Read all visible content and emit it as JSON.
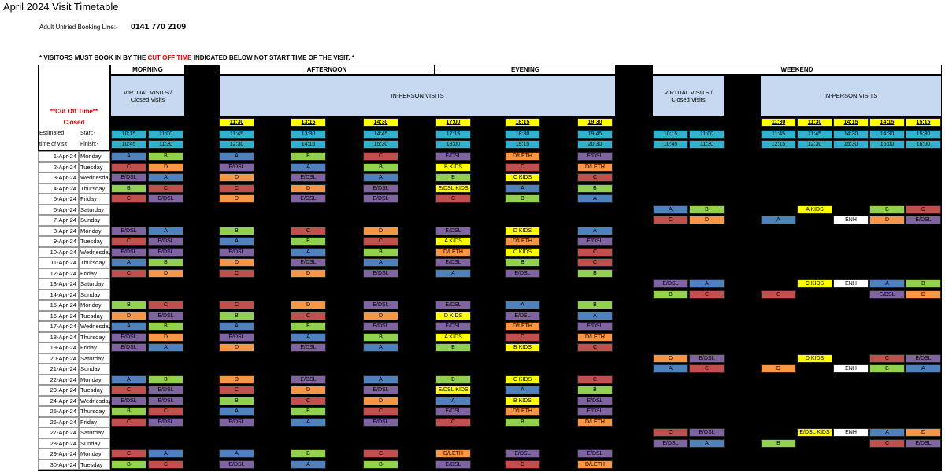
{
  "title": "April 2024 Visit Timetable",
  "booking": {
    "label": "Adult Untried Booking Line:-",
    "number": "0141 770 2109"
  },
  "notice": {
    "before": "* VISITORS MUST BOOK IN BY THE ",
    "highlight": "CUT OFF TIME",
    "after": " INDICATED BELOW NOT START TIME OF THE VISIT. *"
  },
  "sections": [
    "MORNING",
    "AFTERNOON",
    "EVENING",
    "WEEKEND"
  ],
  "groups": [
    "VIRTUAL VISITS / Closed Visits",
    "IN-PERSON VISITS",
    "VIRTUAL VISITS / Closed Visits",
    "IN-PERSON VISITS"
  ],
  "cut_off_label": "**Cut Off Time**",
  "closed_label": "Closed",
  "estimated_label": [
    "Estimated",
    "time of visit"
  ],
  "start_label": "Start:-",
  "finish_label": "Finish:-",
  "cut_off_times": [
    null,
    null,
    "11:30",
    "13:15",
    "14:30",
    "17:00",
    "18:15",
    "19:30",
    null,
    null,
    "11:30",
    "11:30",
    "14:15",
    "14:15",
    "15:15"
  ],
  "start_times": [
    "10:15",
    "11:00",
    "11:45",
    "13:30",
    "14:45",
    "17:15",
    "18:30",
    "19:45",
    "10:15",
    "11:00",
    "11:45",
    "11:45",
    "14:30",
    "14:30",
    "15:30"
  ],
  "finish_times": [
    "10:45",
    "11:30",
    "12:30",
    "14:15",
    "15:30",
    "18:00",
    "19:15",
    "20:30",
    "10:45",
    "11:30",
    "12:15",
    "12:30",
    "15:30",
    "15:00",
    "16:00"
  ],
  "cell_colors": {
    "A": "#4f81bd",
    "B": "#92d050",
    "C": "#c0504d",
    "D": "#f79646",
    "E/DSL": "#8064a2",
    "D/LETH": "#f79646",
    "ENH": "#ffffff",
    "A KIDS": "#ffff00",
    "B KIDS": "#ffff00",
    "C KIDS": "#ffff00",
    "D KIDS": "#ffff00",
    "E/DSL KIDS": "#ffff00"
  },
  "rows": [
    {
      "date": "1-Apr-24",
      "day": "Monday",
      "cells": [
        "A",
        "B",
        "A",
        "B",
        "C",
        "E/DSL",
        "D/LETH",
        "E/DSL",
        null,
        null,
        null,
        null,
        null,
        null,
        null
      ]
    },
    {
      "date": "2-Apr-24",
      "day": "Tuesday",
      "cells": [
        "C",
        "D",
        "E/DSL",
        "A",
        "B",
        "B KIDS",
        "C",
        "D/LETH",
        null,
        null,
        null,
        null,
        null,
        null,
        null
      ]
    },
    {
      "date": "3-Apr-24",
      "day": "Wednesday",
      "cells": [
        "E/DSL",
        "A",
        "D",
        "E/DSL",
        "A",
        "B",
        "C KIDS",
        "C",
        null,
        null,
        null,
        null,
        null,
        null,
        null
      ]
    },
    {
      "date": "4-Apr-24",
      "day": "Thursday",
      "cells": [
        "B",
        "C",
        "C",
        "D",
        "E/DSL",
        "E/DSL KIDS",
        "A",
        "B",
        null,
        null,
        null,
        null,
        null,
        null,
        null
      ]
    },
    {
      "date": "5-Apr-24",
      "day": "Friday",
      "cells": [
        "C",
        "E/DSL",
        "D",
        "E/DSL",
        "E/DSL",
        "C",
        "B",
        "A",
        null,
        null,
        null,
        null,
        null,
        null,
        null
      ]
    },
    {
      "date": "6-Apr-24",
      "day": "Saturday",
      "cells": [
        null,
        null,
        null,
        null,
        null,
        null,
        null,
        null,
        "A",
        "B",
        null,
        "A KIDS",
        null,
        "B",
        "C"
      ]
    },
    {
      "date": "7-Apr-24",
      "day": "Sunday",
      "cells": [
        null,
        null,
        null,
        null,
        null,
        null,
        null,
        null,
        "C",
        "D",
        "A",
        null,
        "ENH",
        "D",
        "E/DSL"
      ]
    },
    {
      "date": "8-Apr-24",
      "day": "Monday",
      "cells": [
        "E/DSL",
        "A",
        "B",
        "C",
        "D",
        "E/DSL",
        "D KIDS",
        "A",
        null,
        null,
        null,
        null,
        null,
        null,
        null
      ]
    },
    {
      "date": "9-Apr-24",
      "day": "Tuesday",
      "cells": [
        "C",
        "E/DSL",
        "A",
        "B",
        "C",
        "A KIDS",
        "D/LETH",
        "E/DSL",
        null,
        null,
        null,
        null,
        null,
        null,
        null
      ]
    },
    {
      "date": "10-Apr-24",
      "day": "Wednesday",
      "cells": [
        "E/DSL",
        "E/DSL",
        "E/DSL",
        "A",
        "B",
        "D/LETH",
        "C KIDS",
        "C",
        null,
        null,
        null,
        null,
        null,
        null,
        null
      ]
    },
    {
      "date": "11-Apr-24",
      "day": "Thursday",
      "cells": [
        "A",
        "B",
        "D",
        "E/DSL",
        "A",
        "E/DSL",
        "B",
        "C",
        null,
        null,
        null,
        null,
        null,
        null,
        null
      ]
    },
    {
      "date": "12-Apr-24",
      "day": "Friday",
      "cells": [
        "C",
        "D",
        "C",
        "D",
        "E/DSL",
        "A",
        "E/DSL",
        "B",
        null,
        null,
        null,
        null,
        null,
        null,
        null
      ]
    },
    {
      "date": "13-Apr-24",
      "day": "Saturday",
      "cells": [
        null,
        null,
        null,
        null,
        null,
        null,
        null,
        null,
        "E/DSL",
        "A",
        null,
        "C KIDS",
        "ENH",
        "A",
        "B"
      ]
    },
    {
      "date": "14-Apr-24",
      "day": "Sunday",
      "cells": [
        null,
        null,
        null,
        null,
        null,
        null,
        null,
        null,
        "B",
        "C",
        "C",
        null,
        null,
        "E/DSL",
        "D"
      ]
    },
    {
      "date": "15-Apr-24",
      "day": "Monday",
      "cells": [
        "B",
        "C",
        "C",
        "D",
        "E/DSL",
        "E/DSL",
        "A",
        "B",
        null,
        null,
        null,
        null,
        null,
        null,
        null
      ]
    },
    {
      "date": "16-Apr-24",
      "day": "Tuesday",
      "cells": [
        "D",
        "E/DSL",
        "B",
        "C",
        "D",
        "D KIDS",
        "E/DSL",
        "A",
        null,
        null,
        null,
        null,
        null,
        null,
        null
      ]
    },
    {
      "date": "17-Apr-24",
      "day": "Wednesday",
      "cells": [
        "A",
        "B",
        "A",
        "B",
        "E/DSL",
        "E/DSL",
        "D/LETH",
        "E/DSL",
        null,
        null,
        null,
        null,
        null,
        null,
        null
      ]
    },
    {
      "date": "18-Apr-24",
      "day": "Thursday",
      "cells": [
        "E/DSL",
        "D",
        "E/DSL",
        "A",
        "B",
        "A KIDS",
        "C",
        "D/LETH",
        null,
        null,
        null,
        null,
        null,
        null,
        null
      ]
    },
    {
      "date": "19-Apr-24",
      "day": "Friday",
      "cells": [
        "E/DSL",
        "A",
        "D",
        "E/DSL",
        "A",
        "B",
        "B KIDS",
        "C",
        null,
        null,
        null,
        null,
        null,
        null,
        null
      ]
    },
    {
      "date": "20-Apr-24",
      "day": "Saturday",
      "cells": [
        null,
        null,
        null,
        null,
        null,
        null,
        null,
        null,
        "D",
        "E/DSL",
        null,
        "D KIDS",
        null,
        "C",
        "E/DSL"
      ]
    },
    {
      "date": "21-Apr-24",
      "day": "Sunday",
      "cells": [
        null,
        null,
        null,
        null,
        null,
        null,
        null,
        null,
        "A",
        "C",
        "D",
        null,
        "ENH",
        "B",
        "A"
      ]
    },
    {
      "date": "22-Apr-24",
      "day": "Monday",
      "cells": [
        "A",
        "B",
        "D",
        "E/DSL",
        "A",
        "B",
        "C KIDS",
        "C",
        null,
        null,
        null,
        null,
        null,
        null,
        null
      ]
    },
    {
      "date": "23-Apr-24",
      "day": "Tuesday",
      "cells": [
        "C",
        "E/DSL",
        "C",
        "D",
        "E/DSL",
        "E/DSL KIDS",
        "A",
        "B",
        null,
        null,
        null,
        null,
        null,
        null,
        null
      ]
    },
    {
      "date": "24-Apr-24",
      "day": "Wednesday",
      "cells": [
        "E/DSL",
        "E/DSL",
        "B",
        "C",
        "D",
        "A",
        "B KIDS",
        "E/DSL",
        null,
        null,
        null,
        null,
        null,
        null,
        null
      ]
    },
    {
      "date": "25-Apr-24",
      "day": "Thursday",
      "cells": [
        "B",
        "C",
        "A",
        "B",
        "C",
        "E/DSL",
        "D/LETH",
        "E/DSL",
        null,
        null,
        null,
        null,
        null,
        null,
        null
      ]
    },
    {
      "date": "26-Apr-24",
      "day": "Friday",
      "cells": [
        "C",
        "E/DSL",
        "E/DSL",
        "A",
        "E/DSL",
        "C",
        "B",
        "D/LETH",
        null,
        null,
        null,
        null,
        null,
        null,
        null
      ]
    },
    {
      "date": "27-Apr-24",
      "day": "Saturday",
      "cells": [
        null,
        null,
        null,
        null,
        null,
        null,
        null,
        null,
        "C",
        "E/DSL",
        null,
        "E/DSL KIDS",
        "ENH",
        "A",
        "D"
      ]
    },
    {
      "date": "28-Apr-24",
      "day": "Sunday",
      "cells": [
        null,
        null,
        null,
        null,
        null,
        null,
        null,
        null,
        "E/DSL",
        "A",
        "B",
        null,
        null,
        "C",
        "E/DSL"
      ]
    },
    {
      "date": "29-Apr-24",
      "day": "Monday",
      "cells": [
        "C",
        "A",
        "A",
        "B",
        "C",
        "D/LETH",
        "E/DSL",
        "E/DSL",
        null,
        null,
        null,
        null,
        null,
        null,
        null
      ]
    },
    {
      "date": "30-Apr-24",
      "day": "Tuesday",
      "cells": [
        "B",
        "C",
        "E/DSL",
        "A",
        "B",
        "E/DSL",
        "C",
        "D/LETH",
        null,
        null,
        null,
        null,
        null,
        null,
        null
      ]
    }
  ]
}
